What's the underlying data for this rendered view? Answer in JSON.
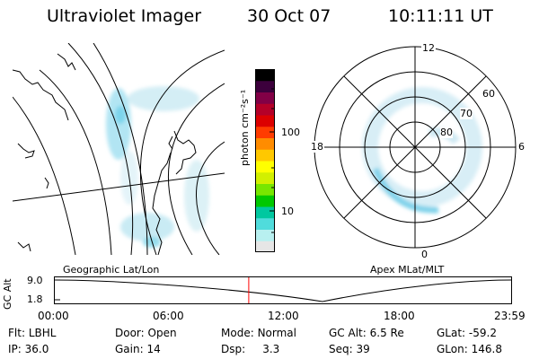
{
  "header": {
    "instrument": "Ultraviolet Imager",
    "date": "30 Oct 07",
    "time": "10:11:11 UT"
  },
  "colorbar": {
    "unit_label": "photon cm⁻²s⁻¹",
    "tick_labels": [
      "100",
      "10"
    ],
    "colors": [
      "#e6e6e6",
      "#b8f0f0",
      "#50dcdc",
      "#00c8a0",
      "#00c800",
      "#78e600",
      "#d2f000",
      "#ffff00",
      "#ffc800",
      "#ff8c00",
      "#ff3c00",
      "#dc0000",
      "#b40028",
      "#820046",
      "#3c003c",
      "#000000"
    ]
  },
  "polar_plot": {
    "hour_labels": [
      "12",
      "18",
      "6",
      "0"
    ],
    "lat_labels": [
      "60",
      "70",
      "80"
    ]
  },
  "map_labels": {
    "left": "Geographic Lat/Lon",
    "right": "Apex MLat/MLT"
  },
  "altitude_strip": {
    "axis_label": "GC Alt",
    "y_ticks": [
      "9.0",
      "1.8"
    ],
    "time_ticks": [
      "00:00",
      "06:00",
      "12:00",
      "18:00",
      "23:59"
    ],
    "current_time_fraction": 0.425,
    "marker_color": "#ff0000"
  },
  "info": {
    "row1": [
      {
        "label": "Flt:",
        "value": "LBHL"
      },
      {
        "label": "Door:",
        "value": "Open"
      },
      {
        "label": "Mode:",
        "value": "Normal"
      },
      {
        "label": "GC Alt:",
        "value": "6.5 Re"
      },
      {
        "label": "GLat:",
        "value": "-59.2"
      }
    ],
    "row2": [
      {
        "label": "IP:",
        "value": "36.0"
      },
      {
        "label": "Gain:",
        "value": "14"
      },
      {
        "label": "Dsp:",
        "value": "3.3"
      },
      {
        "label": "Seq:",
        "value": "39"
      },
      {
        "label": "GLon:",
        "value": "146.8"
      }
    ]
  }
}
